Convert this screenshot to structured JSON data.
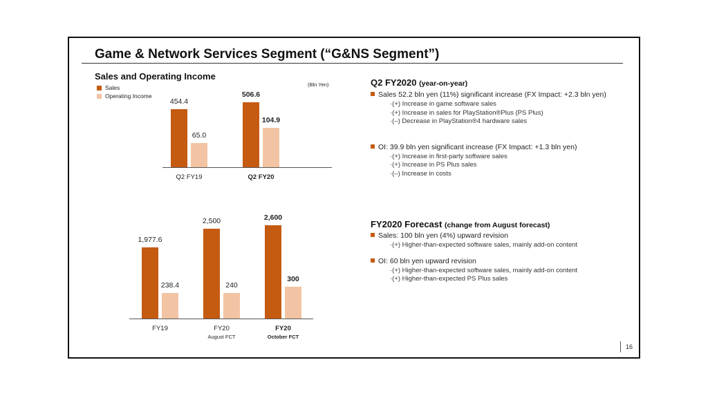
{
  "title": "Game & Network Services Segment (“G&NS Segment”)",
  "page_number": "16",
  "colors": {
    "sales": "#c55a11",
    "oi": "#f2c4a3"
  },
  "chart_data": [
    {
      "type": "bar",
      "title": "Sales and Operating Income",
      "unit": "(Bln Yen)",
      "legend": [
        "Sales",
        "Operating Income"
      ],
      "categories": [
        "Q2 FY19",
        "Q2 FY20"
      ],
      "series": [
        {
          "name": "Sales",
          "values": [
            454.4,
            506.6
          ],
          "labels": [
            "454.4",
            "506.6"
          ]
        },
        {
          "name": "Operating Income",
          "values": [
            65.0,
            104.9
          ],
          "labels": [
            "65.0",
            "104.9"
          ]
        }
      ]
    },
    {
      "type": "bar",
      "categories": [
        "FY19",
        "FY20",
        "FY20"
      ],
      "subcategories": [
        "",
        "August FCT",
        "October FCT"
      ],
      "series": [
        {
          "name": "Sales",
          "values": [
            1977.6,
            2500,
            2600
          ],
          "labels": [
            "1,977.6",
            "2,500",
            "2,600"
          ]
        },
        {
          "name": "Operating Income",
          "values": [
            238.4,
            240,
            300
          ],
          "labels": [
            "238.4",
            "240",
            "300"
          ]
        }
      ]
    }
  ],
  "q2": {
    "heading": "Q2 FY2020",
    "heading_sub": "(year-on-year)",
    "sales": "Sales  52.2 bln yen (11%) significant increase (FX Impact: +2.3 bln yen)",
    "sales_items": [
      "·(+) Increase in game software sales",
      "·(+) Increase in sales for PlayStation®Plus (PS Plus)",
      "·(–) Decrease in PlayStation®4 hardware sales"
    ],
    "oi": "OI: 39.9 bln yen significant increase (FX Impact: +1.3 bln yen)",
    "oi_items": [
      "·(+) Increase in first-party software sales",
      "·(+) Increase in PS Plus sales",
      "·(–) Increase in costs"
    ]
  },
  "fc": {
    "heading": "FY2020 Forecast",
    "heading_sub": "(change from August forecast)",
    "sales": "Sales: 100 bln yen (4%) upward revision",
    "sales_items": [
      "·(+) Higher-than-expected software sales, mainly add-on content"
    ],
    "oi": "OI: 60 bln yen upward revision",
    "oi_items": [
      "·(+) Higher-than-expected software sales, mainly add-on content",
      "·(+) Higher-than-expected PS Plus sales"
    ]
  }
}
